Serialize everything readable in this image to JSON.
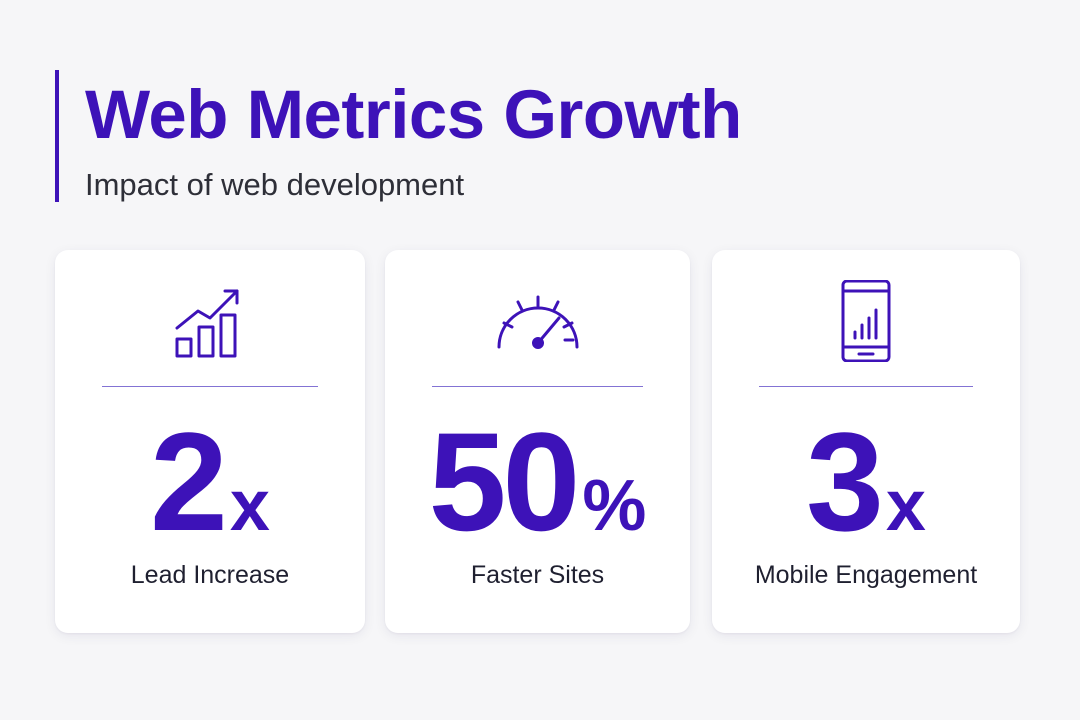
{
  "header": {
    "title": "Web Metrics Growth",
    "subtitle": "Impact of web development",
    "accent_color": "#3d12b8"
  },
  "cards": [
    {
      "icon": "growth-chart-icon",
      "value": "2",
      "unit": "x",
      "label": "Lead Increase"
    },
    {
      "icon": "speedometer-icon",
      "value": "50",
      "unit": "%",
      "label": "Faster Sites"
    },
    {
      "icon": "mobile-chart-icon",
      "value": "3",
      "unit": "x",
      "label": "Mobile Engagement"
    }
  ]
}
